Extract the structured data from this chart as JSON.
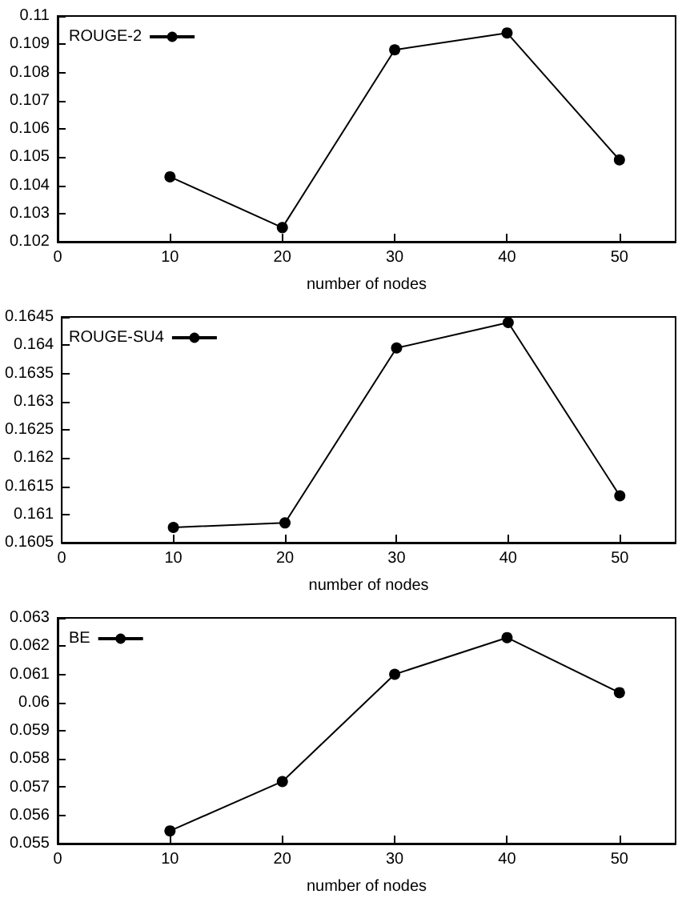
{
  "chart_data": [
    {
      "type": "line",
      "xlabel": "number of nodes",
      "x": [
        10,
        20,
        30,
        40,
        50
      ],
      "series": [
        {
          "name": "ROUGE-2",
          "color": "#000000",
          "values": [
            0.1043,
            0.1025,
            0.1088,
            0.1094,
            0.1049
          ]
        }
      ],
      "xlim": [
        0,
        55
      ],
      "xticks": [
        0,
        10,
        20,
        30,
        40,
        50
      ],
      "ylim": [
        0.102,
        0.11
      ],
      "yticks": [
        0.102,
        0.103,
        0.104,
        0.105,
        0.106,
        0.107,
        0.108,
        0.109,
        0.11
      ],
      "marker": "circle",
      "legend": "top left",
      "grid": false
    },
    {
      "type": "line",
      "xlabel": "number of nodes",
      "x": [
        10,
        20,
        30,
        40,
        50
      ],
      "series": [
        {
          "name": "ROUGE-SU4",
          "color": "#000000",
          "values": [
            0.16077,
            0.16085,
            0.16395,
            0.1644,
            0.16133
          ]
        }
      ],
      "xlim": [
        0,
        55
      ],
      "xticks": [
        0,
        10,
        20,
        30,
        40,
        50
      ],
      "ylim": [
        0.1605,
        0.1645
      ],
      "yticks": [
        0.1605,
        0.161,
        0.1615,
        0.162,
        0.1625,
        0.163,
        0.1635,
        0.164,
        0.1645
      ],
      "marker": "circle",
      "legend": "top left",
      "grid": false
    },
    {
      "type": "line",
      "xlabel": "number of nodes",
      "x": [
        10,
        20,
        30,
        40,
        50
      ],
      "series": [
        {
          "name": "BE",
          "color": "#000000",
          "values": [
            0.05545,
            0.0572,
            0.061,
            0.0623,
            0.06035
          ]
        }
      ],
      "xlim": [
        0,
        55
      ],
      "xticks": [
        0,
        10,
        20,
        30,
        40,
        50
      ],
      "ylim": [
        0.055,
        0.063
      ],
      "yticks": [
        0.055,
        0.056,
        0.057,
        0.058,
        0.059,
        0.06,
        0.061,
        0.062,
        0.063
      ],
      "marker": "circle",
      "legend": "top left",
      "grid": false
    }
  ]
}
